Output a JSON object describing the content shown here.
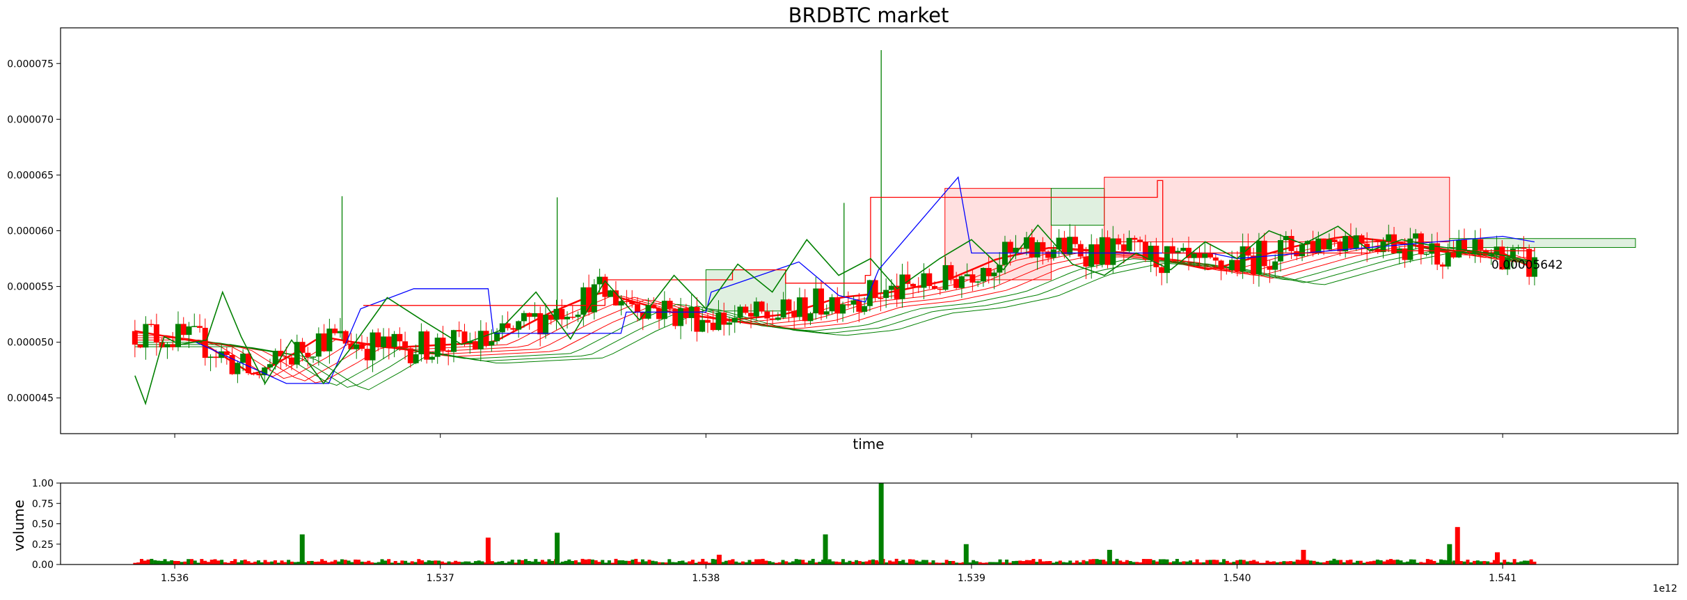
{
  "chart_data": [
    {
      "type": "candlestick",
      "title": "BRDBTC market",
      "xlabel": "time",
      "ylabel": "",
      "x_offset_label": "1e12",
      "xlim": [
        1.53557,
        1.54166
      ],
      "ylim": [
        4.18e-05,
        7.82e-05
      ],
      "x_ticks": [
        1.536,
        1.537,
        1.538,
        1.539,
        1.54,
        1.541
      ],
      "y_ticks": [
        "0.000045",
        "0.000050",
        "0.000055",
        "0.000060",
        "0.000065",
        "0.000070",
        "0.000075"
      ],
      "last_price_label": "0.00005642",
      "colors": {
        "up": "#008000",
        "down": "#ff0000",
        "price_line": "#008000",
        "band_upper": "#0000ff",
        "ichimoku_green": "#008000",
        "ichimoku_red": "#ff0000"
      },
      "price_line": [
        [
          1.53585,
          4.7e-05
        ],
        [
          1.53589,
          4.45e-05
        ],
        [
          1.53596,
          5.05e-05
        ],
        [
          1.53602,
          4.98e-05
        ],
        [
          1.53612,
          5.02e-05
        ],
        [
          1.53618,
          5.45e-05
        ],
        [
          1.53625,
          5.05e-05
        ],
        [
          1.53634,
          4.63e-05
        ],
        [
          1.53644,
          5.02e-05
        ],
        [
          1.53656,
          4.63e-05
        ],
        [
          1.53668,
          5e-05
        ],
        [
          1.5368,
          5.4e-05
        ],
        [
          1.53693,
          5.2e-05
        ],
        [
          1.53708,
          4.98e-05
        ],
        [
          1.53722,
          5.1e-05
        ],
        [
          1.53736,
          5.45e-05
        ],
        [
          1.53749,
          5.03e-05
        ],
        [
          1.53762,
          5.55e-05
        ],
        [
          1.53775,
          5.2e-05
        ],
        [
          1.53788,
          5.6e-05
        ],
        [
          1.538,
          5.3e-05
        ],
        [
          1.53812,
          5.7e-05
        ],
        [
          1.53825,
          5.45e-05
        ],
        [
          1.53838,
          5.92e-05
        ],
        [
          1.5385,
          5.6e-05
        ],
        [
          1.53862,
          5.75e-05
        ],
        [
          1.53872,
          5.48e-05
        ],
        [
          1.53888,
          5.75e-05
        ],
        [
          1.539,
          5.92e-05
        ],
        [
          1.53912,
          5.65e-05
        ],
        [
          1.53925,
          6.05e-05
        ],
        [
          1.53938,
          5.7e-05
        ],
        [
          1.5395,
          5.6e-05
        ],
        [
          1.53962,
          5.8e-05
        ],
        [
          1.53975,
          5.65e-05
        ],
        [
          1.53988,
          5.9e-05
        ],
        [
          1.54,
          5.75e-05
        ],
        [
          1.54012,
          6e-05
        ],
        [
          1.54025,
          5.88e-05
        ],
        [
          1.54038,
          6.04e-05
        ],
        [
          1.5405,
          5.82e-05
        ],
        [
          1.54062,
          5.92e-05
        ],
        [
          1.54075,
          5.86e-05
        ],
        [
          1.54088,
          5.82e-05
        ],
        [
          1.541,
          5.78e-05
        ],
        [
          1.54112,
          5.72e-05
        ]
      ],
      "band_upper": [
        [
          1.53608,
          5e-05
        ],
        [
          1.53642,
          4.63e-05
        ],
        [
          1.53658,
          4.63e-05
        ],
        [
          1.5367,
          5.3e-05
        ],
        [
          1.5369,
          5.48e-05
        ],
        [
          1.53718,
          5.48e-05
        ],
        [
          1.5372,
          5.08e-05
        ],
        [
          1.53768,
          5.08e-05
        ],
        [
          1.5377,
          5.27e-05
        ],
        [
          1.538,
          5.27e-05
        ],
        [
          1.53802,
          5.45e-05
        ],
        [
          1.53835,
          5.72e-05
        ],
        [
          1.5385,
          5.42e-05
        ],
        [
          1.5386,
          5.36e-05
        ],
        [
          1.53865,
          5.65e-05
        ],
        [
          1.53895,
          6.48e-05
        ],
        [
          1.539,
          5.8e-05
        ],
        [
          1.5399,
          5.8e-05
        ],
        [
          1.54,
          5.75e-05
        ],
        [
          1.541,
          5.95e-05
        ],
        [
          1.54112,
          5.9e-05
        ]
      ],
      "kijun_red": [
        [
          1.53671,
          5.33e-05
        ],
        [
          1.5376,
          5.33e-05
        ],
        [
          1.53762,
          5.56e-05
        ],
        [
          1.5381,
          5.65e-05
        ],
        [
          1.5383,
          5.53e-05
        ],
        [
          1.5386,
          5.6e-05
        ],
        [
          1.53862,
          6.3e-05
        ],
        [
          1.5397,
          6.45e-05
        ],
        [
          1.53972,
          5.8e-05
        ],
        [
          1.5405,
          5.82e-05
        ],
        [
          1.54112,
          5.85e-05
        ]
      ],
      "cloud": [
        {
          "color": "green",
          "from": 1.538,
          "to": 1.5383,
          "top": 5.65e-05,
          "bottom": 5.28e-05
        },
        {
          "color": "red",
          "from": 1.5389,
          "to": 1.5393,
          "top": 6.38e-05,
          "bottom": 5.56e-05
        },
        {
          "color": "green",
          "from": 1.5393,
          "to": 1.5395,
          "top": 6.38e-05,
          "bottom": 6.05e-05
        },
        {
          "color": "red",
          "from": 1.5395,
          "to": 1.5408,
          "top": 6.48e-05,
          "bottom": 5.9e-05
        },
        {
          "color": "green",
          "from": 1.5408,
          "to": 1.5415,
          "top": 5.93e-05,
          "bottom": 5.85e-05
        }
      ],
      "volume_axis": {
        "ylabel": "volume",
        "y_ticks": [
          "0.00",
          "0.25",
          "0.50",
          "0.75",
          "1.00"
        ],
        "ylim": [
          0,
          1
        ]
      },
      "volume_spikes": [
        [
          1.53648,
          0.37,
          "up"
        ],
        [
          1.53718,
          0.33,
          "down"
        ],
        [
          1.53744,
          0.39,
          "up"
        ],
        [
          1.53805,
          0.12,
          "down"
        ],
        [
          1.53845,
          0.37,
          "up"
        ],
        [
          1.53866,
          1.0,
          "up"
        ],
        [
          1.53898,
          0.25,
          "up"
        ],
        [
          1.53952,
          0.18,
          "up"
        ],
        [
          1.54025,
          0.18,
          "down"
        ],
        [
          1.5408,
          0.25,
          "up"
        ],
        [
          1.54083,
          0.46,
          "down"
        ],
        [
          1.54098,
          0.15,
          "down"
        ]
      ]
    }
  ]
}
